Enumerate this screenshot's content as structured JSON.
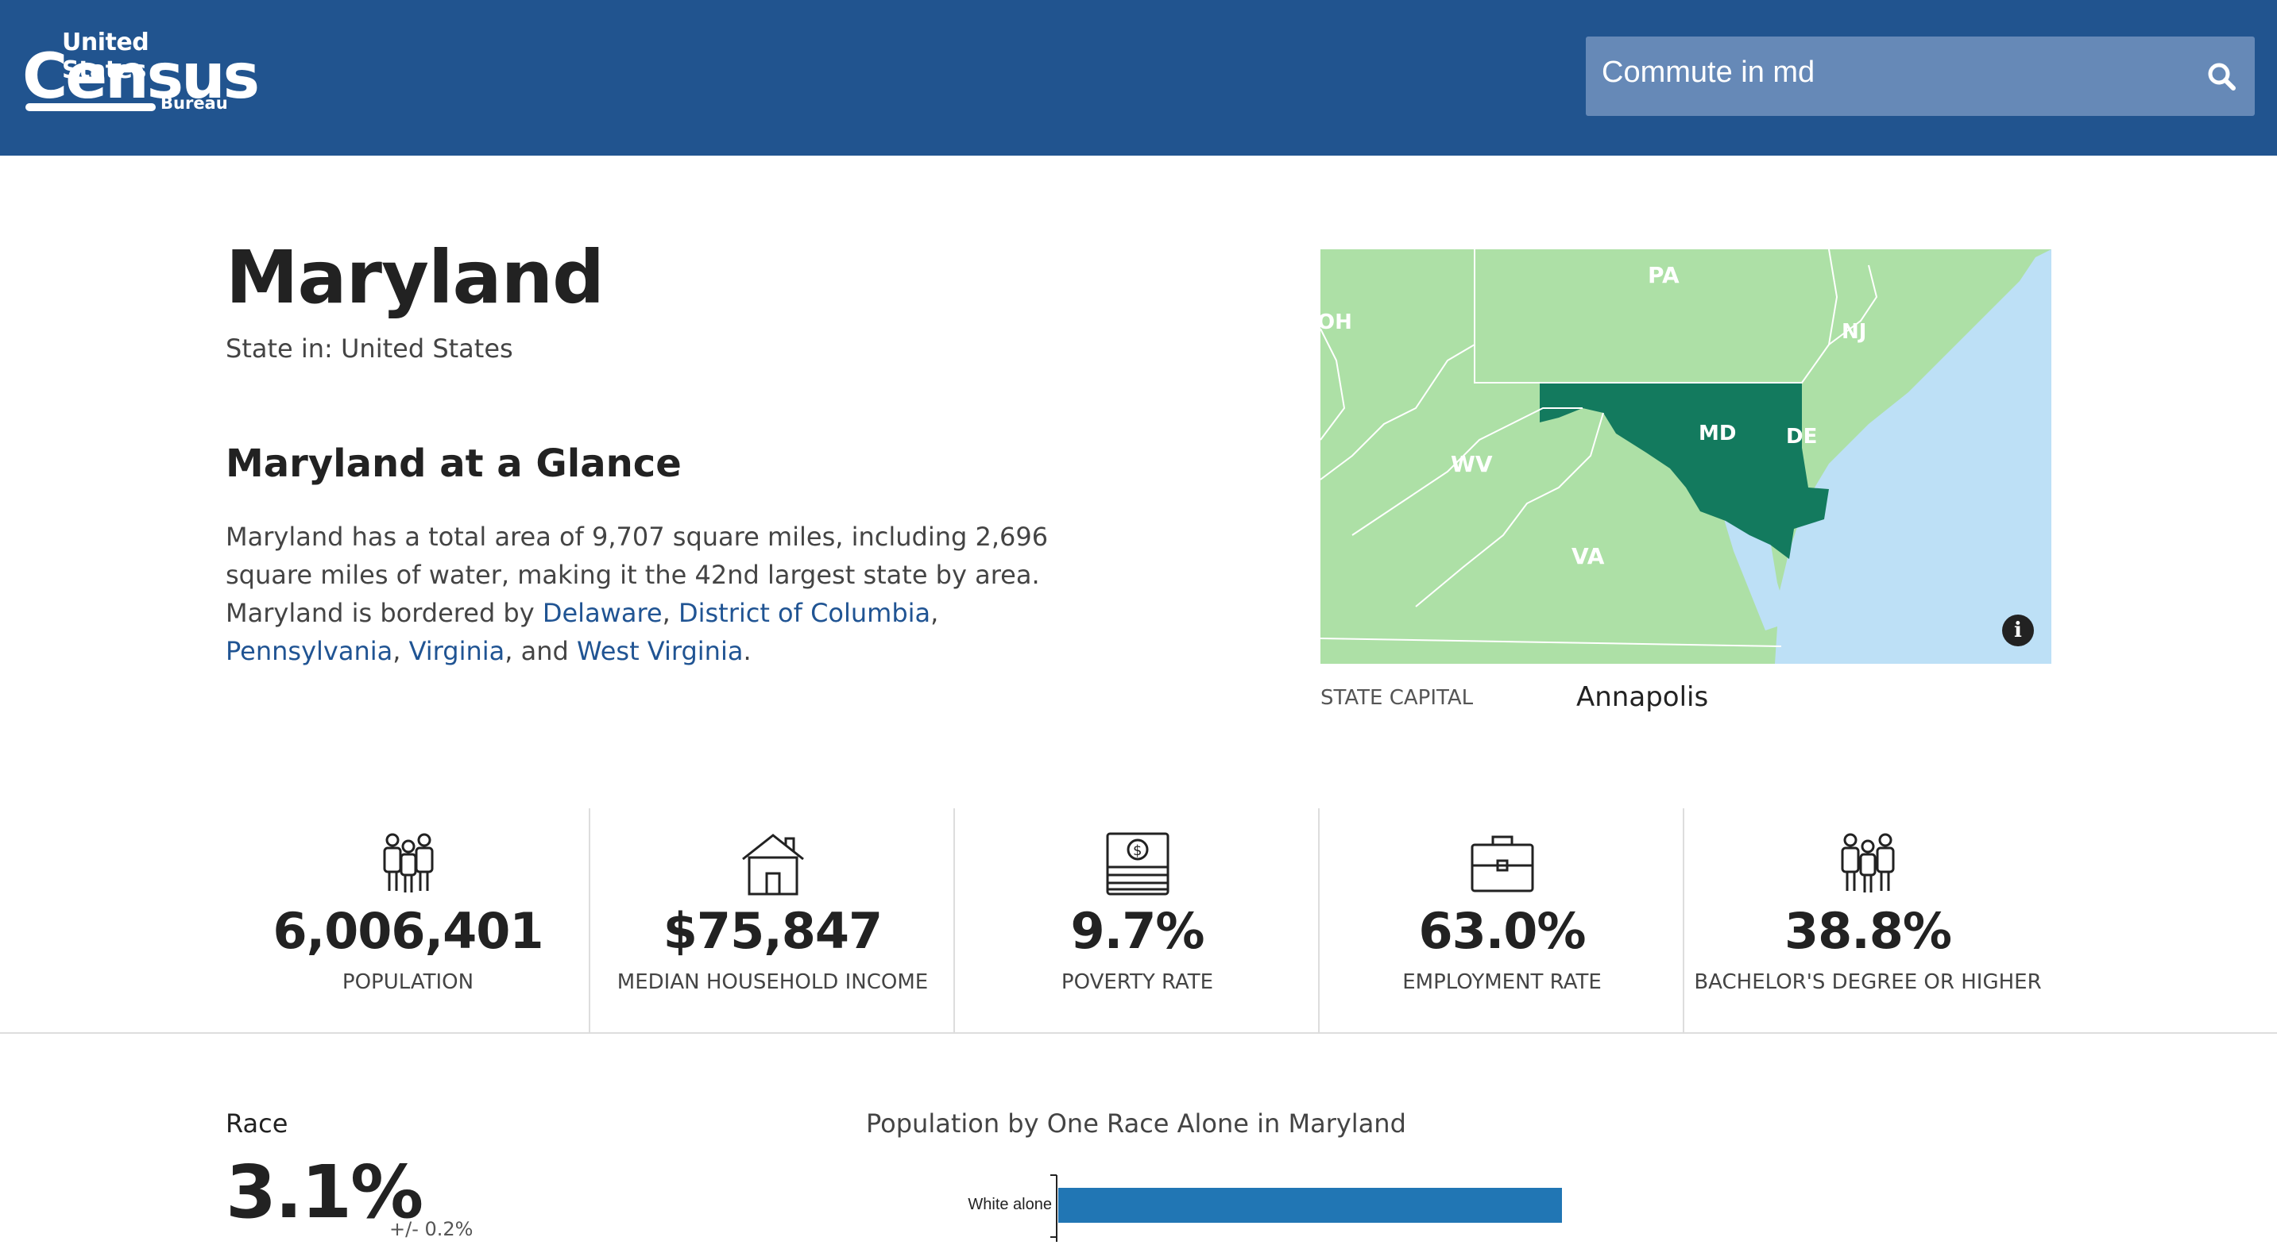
{
  "header": {
    "logo": {
      "line1": "United States",
      "line2": "Census",
      "line3": "Bureau"
    },
    "search": {
      "query": "Commute in md",
      "icon": "search-icon"
    }
  },
  "profile": {
    "title": "Maryland",
    "subtitle": "State in: United States",
    "glance_heading": "Maryland at a Glance",
    "glance_text_before": "Maryland has a total area of 9,707 square miles, including 2,696 square miles of water, making it the 42nd largest state by area. Maryland is bordered by ",
    "links": [
      "Delaware",
      "District of Columbia",
      "Pennsylvania",
      "Virginia",
      "West Virginia"
    ],
    "sep1": ", ",
    "sep2": ", ",
    "sep3": ", ",
    "sep4": ", and ",
    "end": "."
  },
  "map": {
    "labels": [
      "PA",
      "OH",
      "NJ",
      "MD",
      "DE",
      "WV",
      "VA"
    ],
    "colors": {
      "land": "#ade0a6",
      "water": "#bde0f6",
      "highlight": "#137a5e"
    },
    "capital_label": "STATE CAPITAL",
    "capital_value": "Annapolis"
  },
  "stats": [
    {
      "icon": "people-icon",
      "value": "6,006,401",
      "label": "POPULATION"
    },
    {
      "icon": "house-icon",
      "value": "$75,847",
      "label": "MEDIAN HOUSEHOLD INCOME"
    },
    {
      "icon": "money-icon",
      "value": "9.7%",
      "label": "POVERTY RATE"
    },
    {
      "icon": "briefcase-icon",
      "value": "63.0%",
      "label": "EMPLOYMENT RATE"
    },
    {
      "icon": "graduates-icon",
      "value": "38.8%",
      "label": "BACHELOR'S DEGREE OR HIGHER"
    }
  ],
  "race": {
    "heading": "Race",
    "value": "3.1%",
    "moe": "+/- 0.2%"
  },
  "chart_data": {
    "type": "bar",
    "title": "Population by One Race Alone in Maryland",
    "categories": [
      "White alone"
    ],
    "values": [
      null
    ],
    "color": "#2176b4"
  }
}
